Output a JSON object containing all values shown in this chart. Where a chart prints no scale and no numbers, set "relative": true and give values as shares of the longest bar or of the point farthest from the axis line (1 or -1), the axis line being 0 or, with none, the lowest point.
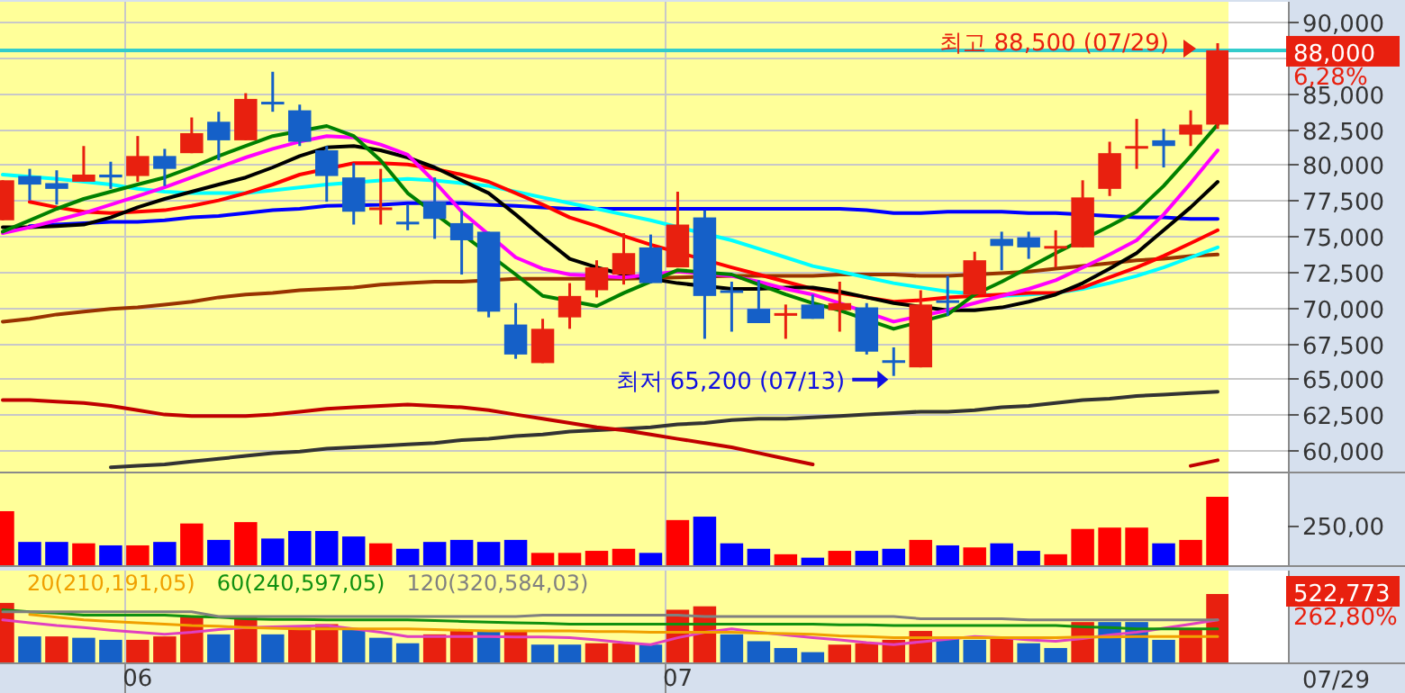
{
  "chart_data": [
    {
      "type": "candlestick",
      "categories": [
        null,
        null,
        null,
        null,
        null,
        "06",
        null,
        null,
        null,
        null,
        null,
        null,
        null,
        null,
        null,
        null,
        null,
        null,
        null,
        null,
        null,
        null,
        null,
        null,
        null,
        "07",
        null,
        null,
        null,
        null,
        null,
        null,
        null,
        null,
        null,
        null,
        null,
        null,
        null,
        null,
        null,
        null,
        null,
        null,
        null,
        null
      ],
      "ohlc": [
        [
          76100,
          78900,
          76100,
          78900
        ],
        [
          79200,
          79700,
          77500,
          78600
        ],
        [
          78700,
          79600,
          77200,
          78300
        ],
        [
          78800,
          81300,
          78800,
          79300
        ],
        [
          79300,
          80200,
          78300,
          79100
        ],
        [
          79200,
          82000,
          78800,
          80600
        ],
        [
          80600,
          81100,
          78500,
          79700
        ],
        [
          80800,
          83300,
          80800,
          82200
        ],
        [
          83000,
          83700,
          80300,
          81700
        ],
        [
          81700,
          85000,
          81700,
          84600
        ],
        [
          84400,
          86500,
          83700,
          84300
        ],
        [
          83800,
          84200,
          81300,
          81600
        ],
        [
          81000,
          81300,
          77400,
          79200
        ],
        [
          79100,
          80100,
          75800,
          76700
        ],
        [
          76900,
          79700,
          75800,
          77000
        ],
        [
          76000,
          77200,
          75400,
          75900
        ],
        [
          77400,
          79100,
          74800,
          76200
        ],
        [
          75900,
          76800,
          72300,
          74700
        ],
        [
          75300,
          75300,
          69300,
          69700
        ],
        [
          68800,
          70300,
          66400,
          66700
        ],
        [
          66100,
          69200,
          66100,
          68500
        ],
        [
          69300,
          71700,
          68500,
          70800
        ],
        [
          71200,
          73300,
          70700,
          72800
        ],
        [
          72300,
          75200,
          71600,
          73800
        ],
        [
          74200,
          75100,
          71700,
          71700
        ],
        [
          72800,
          78100,
          72800,
          75800
        ],
        [
          76300,
          76800,
          67800,
          70800
        ],
        [
          71200,
          71800,
          68300,
          71100
        ],
        [
          69900,
          71900,
          68900,
          68900
        ],
        [
          69500,
          70200,
          67800,
          69600
        ],
        [
          70200,
          70900,
          69200,
          69200
        ],
        [
          69800,
          71800,
          68300,
          70300
        ],
        [
          70000,
          70300,
          66700,
          66900
        ],
        [
          66300,
          67200,
          65200,
          66200
        ],
        [
          65800,
          71200,
          65800,
          70200
        ],
        [
          70500,
          72200,
          69400,
          70400
        ],
        [
          70900,
          73900,
          70900,
          73300
        ],
        [
          74800,
          75300,
          72600,
          74300
        ],
        [
          74900,
          75300,
          73400,
          74200
        ],
        [
          74200,
          75400,
          72800,
          74300
        ],
        [
          74200,
          78900,
          74200,
          77700
        ],
        [
          78300,
          81600,
          77800,
          80800
        ],
        [
          81200,
          83200,
          79700,
          81300
        ],
        [
          81700,
          82500,
          79800,
          81300
        ],
        [
          82100,
          83800,
          81300,
          82800
        ],
        [
          82800,
          88500,
          82500,
          88000
        ]
      ],
      "colors": [
        "#e8200f",
        "#1560c8",
        "#1560c8",
        "#e8200f",
        "#1560c8",
        "#e8200f",
        "#1560c8",
        "#e8200f",
        "#1560c8",
        "#e8200f",
        "#1560c8",
        "#1560c8",
        "#1560c8",
        "#1560c8",
        "#e8200f",
        "#1560c8",
        "#1560c8",
        "#1560c8",
        "#1560c8",
        "#1560c8",
        "#e8200f",
        "#e8200f",
        "#e8200f",
        "#e8200f",
        "#1560c8",
        "#e8200f",
        "#1560c8",
        "#1560c8",
        "#1560c8",
        "#e8200f",
        "#1560c8",
        "#e8200f",
        "#1560c8",
        "#1560c8",
        "#e8200f",
        "#1560c8",
        "#e8200f",
        "#1560c8",
        "#1560c8",
        "#e8200f",
        "#e8200f",
        "#e8200f",
        "#e8200f",
        "#1560c8",
        "#e8200f",
        "#e8200f"
      ],
      "series": [
        {
          "type": "line",
          "color": "#993300",
          "values": [
            69000,
            69200,
            69500,
            69700,
            69900,
            70000,
            70200,
            70400,
            70700,
            70900,
            71000,
            71200,
            71300,
            71400,
            71600,
            71700,
            71800,
            71800,
            null,
            72000,
            72000,
            72000,
            null,
            72000,
            null,
            72100,
            null,
            72200,
            72200,
            72200,
            72200,
            72300,
            72300,
            72300,
            72200,
            72200,
            null,
            72400,
            72500,
            72700,
            72900,
            73100,
            73300,
            73400,
            73600,
            73700
          ]
        },
        {
          "type": "line",
          "color": "#333333",
          "values": [
            null,
            null,
            null,
            null,
            58800,
            58900,
            59000,
            59200,
            59400,
            59600,
            59800,
            59900,
            60100,
            60200,
            60300,
            60400,
            60500,
            60700,
            60800,
            61000,
            61100,
            61300,
            61400,
            61500,
            61600,
            61800,
            61900,
            62100,
            62200,
            62200,
            62300,
            62400,
            62500,
            62600,
            62700,
            62700,
            62800,
            63000,
            63100,
            63300,
            63500,
            63600,
            63800,
            63900,
            64000,
            64100
          ]
        },
        {
          "type": "line",
          "color": "#c00000",
          "values": [
            63500,
            63500,
            63400,
            63300,
            63100,
            62800,
            62500,
            62400,
            62400,
            62400,
            62500,
            62700,
            62900,
            63000,
            63100,
            63200,
            63100,
            63000,
            62800,
            62500,
            62200,
            61900,
            61600,
            61400,
            61100,
            60800,
            60500,
            60200,
            59800,
            59400,
            59000,
            null,
            null,
            null,
            null,
            null,
            null,
            null,
            null,
            null,
            null,
            null,
            null,
            null,
            58900,
            59300
          ]
        },
        {
          "type": "line",
          "color": "#0000ff",
          "values": [
            null,
            75700,
            75800,
            75900,
            76000,
            76000,
            76100,
            76300,
            76400,
            76600,
            76800,
            76900,
            77100,
            null,
            77200,
            77300,
            null,
            77300,
            77200,
            77100,
            77000,
            76900,
            76900,
            76900,
            76900,
            76900,
            76900,
            76900,
            76900,
            76900,
            76900,
            76900,
            76800,
            76600,
            76600,
            76700,
            76700,
            76700,
            76600,
            76600,
            null,
            76400,
            76300,
            76300,
            76200,
            76200
          ]
        },
        {
          "type": "line",
          "color": "#00ffff",
          "values": [
            79300,
            null,
            79000,
            null,
            78600,
            78300,
            78100,
            78000,
            78000,
            78000,
            78200,
            78400,
            78600,
            null,
            78900,
            79000,
            78900,
            78700,
            78500,
            78100,
            77700,
            77300,
            76900,
            76500,
            76100,
            null,
            null,
            74700,
            74100,
            73500,
            72900,
            72500,
            72100,
            71700,
            71400,
            71100,
            null,
            70800,
            70900,
            71000,
            71300,
            71700,
            72200,
            72800,
            73500,
            74200
          ]
        },
        {
          "type": "line",
          "color": "#ff0000",
          "values": [
            null,
            77400,
            77000,
            76700,
            76600,
            76700,
            76800,
            77100,
            77500,
            78000,
            78600,
            79300,
            null,
            80100,
            80100,
            80000,
            79700,
            79300,
            78800,
            78000,
            77200,
            76300,
            75700,
            75000,
            74400,
            null,
            null,
            72800,
            72300,
            71800,
            71300,
            71000,
            70700,
            70400,
            70500,
            70700,
            null,
            70900,
            71000,
            71000,
            71400,
            72100,
            72800,
            73600,
            74500,
            75400
          ]
        },
        {
          "type": "line",
          "color": "#000000",
          "values": [
            75600,
            75600,
            75700,
            75800,
            76300,
            77000,
            77600,
            78100,
            78600,
            79100,
            79800,
            80600,
            81200,
            81300,
            81000,
            80500,
            79800,
            78900,
            78000,
            76500,
            74900,
            73400,
            72800,
            72300,
            null,
            71700,
            null,
            71300,
            71300,
            71400,
            71400,
            71100,
            70700,
            70300,
            null,
            69800,
            69800,
            70000,
            70400,
            70900,
            71700,
            72700,
            73800,
            75400,
            77000,
            78800
          ]
        },
        {
          "type": "line",
          "color": "#ff00ff",
          "values": [
            75200,
            75600,
            76100,
            76600,
            77200,
            77800,
            78400,
            79100,
            79800,
            80500,
            81100,
            81600,
            82000,
            81900,
            81400,
            80700,
            78800,
            76700,
            null,
            73500,
            72700,
            72300,
            null,
            72100,
            null,
            72500,
            null,
            72200,
            71800,
            71300,
            70900,
            70300,
            null,
            69000,
            null,
            69800,
            70300,
            70800,
            71300,
            71900,
            72800,
            73700,
            74700,
            76500,
            78700,
            81000
          ]
        },
        {
          "type": "line",
          "color": "#008000",
          "values": [
            75300,
            76100,
            76900,
            77600,
            78100,
            78600,
            79100,
            79800,
            80600,
            81300,
            82000,
            null,
            82700,
            82000,
            80300,
            78000,
            null,
            null,
            null,
            72300,
            70800,
            null,
            70100,
            71000,
            null,
            72600,
            null,
            72300,
            71600,
            70900,
            70300,
            69800,
            null,
            68500,
            null,
            69500,
            70900,
            71800,
            72800,
            73800,
            null,
            75700,
            76700,
            78500,
            80600,
            82800
          ]
        }
      ],
      "ylim": [
        58500,
        91400
      ],
      "yticks": [
        {
          "value": 60000,
          "label": "60,000"
        },
        {
          "value": 62500,
          "label": "62,500"
        },
        {
          "value": 65000,
          "label": "65,000"
        },
        {
          "value": 67500,
          "label": "67,500"
        },
        {
          "value": 70000,
          "label": "70,000"
        },
        {
          "value": 72500,
          "label": "72,500"
        },
        {
          "value": 75000,
          "label": "75,000"
        },
        {
          "value": 77500,
          "label": "77,500"
        },
        {
          "value": 80000,
          "label": "80,000"
        },
        {
          "value": 82500,
          "label": "82,500"
        },
        {
          "value": 85000,
          "label": "85,000"
        },
        {
          "value": 87500,
          "label": null
        },
        {
          "value": 90000,
          "label": "90,000"
        }
      ],
      "ref_lines": [
        {
          "axis": "y",
          "value": 88000,
          "color": "#33cccc"
        }
      ],
      "annotations": [
        {
          "text": "최고 88,500 (07/29)",
          "y": 88500
        },
        "최저 65,200 (07/13)",
        "88,000",
        "6,28%"
      ],
      "grid": true,
      "tick_labels": "y",
      "legend": false
    },
    {
      "type": "bar",
      "relative": true,
      "categories": [
        null,
        null,
        null,
        null,
        null,
        "06",
        null,
        null,
        null,
        null,
        null,
        null,
        null,
        null,
        null,
        null,
        null,
        null,
        null,
        null,
        null,
        null,
        null,
        null,
        null,
        "07",
        null,
        null,
        null,
        null,
        null,
        null,
        null,
        null,
        null,
        null,
        null,
        null,
        null,
        null,
        null,
        null,
        null,
        null,
        null,
        null
      ],
      "values": [
        0.79,
        0.34,
        0.34,
        0.32,
        0.29,
        0.29,
        0.34,
        0.61,
        0.37,
        0.63,
        0.39,
        0.5,
        0.5,
        0.42,
        0.32,
        0.24,
        0.34,
        0.37,
        0.34,
        0.37,
        0.18,
        0.18,
        0.21,
        0.24,
        0.18,
        0.66,
        0.71,
        0.32,
        0.24,
        0.16,
        0.11,
        0.21,
        0.21,
        0.24,
        0.37,
        0.29,
        0.26,
        0.32,
        0.21,
        0.16,
        0.53,
        0.55,
        0.55,
        0.32,
        0.37,
        1
      ],
      "colors": [
        "#ff0000",
        "#0000ff",
        "#0000ff",
        "#ff0000",
        "#0000ff",
        "#ff0000",
        "#0000ff",
        "#ff0000",
        "#0000ff",
        "#ff0000",
        "#0000ff",
        "#0000ff",
        "#0000ff",
        "#0000ff",
        "#ff0000",
        "#0000ff",
        "#0000ff",
        "#0000ff",
        "#0000ff",
        "#0000ff",
        "#ff0000",
        "#ff0000",
        "#ff0000",
        "#ff0000",
        "#0000ff",
        "#ff0000",
        "#0000ff",
        "#0000ff",
        "#0000ff",
        "#ff0000",
        "#0000ff",
        "#ff0000",
        "#0000ff",
        "#0000ff",
        "#ff0000",
        "#0000ff",
        "#ff0000",
        "#0000ff",
        "#0000ff",
        "#ff0000",
        "#ff0000",
        "#ff0000",
        "#ff0000",
        "#0000ff",
        "#ff0000",
        "#ff0000"
      ],
      "annotations": [
        "250,00"
      ],
      "grid": "x",
      "tick_labels": false,
      "legend": false
    },
    {
      "type": "bar",
      "relative": true,
      "categories": [
        null,
        null,
        null,
        null,
        null,
        "06",
        null,
        null,
        null,
        null,
        null,
        null,
        null,
        null,
        null,
        null,
        null,
        null,
        null,
        null,
        null,
        null,
        null,
        null,
        null,
        "07",
        null,
        null,
        null,
        null,
        null,
        null,
        null,
        null,
        null,
        null,
        null,
        null,
        null,
        null,
        null,
        null,
        null,
        null,
        null,
        null
      ],
      "values": [
        0.87,
        0.38,
        0.38,
        0.36,
        0.33,
        0.33,
        0.38,
        0.67,
        0.41,
        0.67,
        0.41,
        0.51,
        0.56,
        0.49,
        0.36,
        0.28,
        0.41,
        0.46,
        0.46,
        0.46,
        0.26,
        0.26,
        0.28,
        0.28,
        0.26,
        0.77,
        0.82,
        0.41,
        0.31,
        0.21,
        0.15,
        0.26,
        0.28,
        0.33,
        0.46,
        0.36,
        0.33,
        0.36,
        0.28,
        0.21,
        0.59,
        0.59,
        0.59,
        0.33,
        0.49,
        1
      ],
      "colors": [
        "#e8200f",
        "#1560c8",
        "#e8200f",
        "#1560c8",
        "#1560c8",
        "#e8200f",
        "#e8200f",
        "#e8200f",
        "#1560c8",
        "#e8200f",
        "#1560c8",
        "#e8200f",
        "#e8200f",
        "#1560c8",
        "#1560c8",
        "#1560c8",
        "#e8200f",
        "#e8200f",
        "#1560c8",
        "#e8200f",
        "#1560c8",
        "#1560c8",
        "#e8200f",
        "#e8200f",
        "#1560c8",
        "#e8200f",
        "#e8200f",
        "#1560c8",
        "#1560c8",
        "#1560c8",
        "#1560c8",
        "#e8200f",
        "#e8200f",
        "#e8200f",
        "#e8200f",
        "#1560c8",
        "#1560c8",
        "#e8200f",
        "#1560c8",
        "#1560c8",
        "#e8200f",
        "#1560c8",
        "#1560c8",
        "#1560c8",
        "#e8200f",
        "#e8200f"
      ],
      "series": [
        {
          "type": "line",
          "color": "#e040c0",
          "values": [
            0.62,
            0.58,
            0.54,
            0.51,
            0.47,
            0.44,
            0.41,
            0.44,
            0.48,
            0.51,
            0.52,
            0.53,
            0.54,
            0.49,
            0.44,
            0.38,
            0.38,
            0.38,
            0.38,
            0.37,
            0.37,
            0.36,
            0.33,
            0.29,
            0.26,
            0.36,
            0.44,
            0.49,
            0.44,
            0.4,
            0.36,
            0.33,
            0.29,
            0.26,
            0.3,
            0.34,
            0.38,
            0.36,
            0.33,
            0.31,
            0.35,
            0.4,
            0.44,
            0.5,
            0.56,
            0.62
          ]
        },
        {
          "type": "line",
          "name": "20(210,191,05)",
          "color": "#f0a000",
          "values": [
            null,
            0.7,
            0.66,
            0.62,
            0.6,
            0.58,
            0.56,
            0.54,
            0.53,
            0.51,
            0.5,
            0.49,
            0.49,
            0.49,
            0.49,
            0.49,
            0.48,
            0.47,
            0.46,
            0.46,
            0.46,
            0.46,
            0.45,
            0.45,
            0.44,
            0.44,
            0.44,
            0.44,
            0.43,
            0.42,
            0.41,
            0.39,
            0.38,
            0.36,
            0.36,
            0.36,
            0.36,
            0.36,
            0.36,
            0.36,
            0.37,
            0.37,
            0.38,
            0.38,
            0.38,
            0.38
          ]
        },
        {
          "type": "line",
          "name": "60(240,597,05)",
          "color": "#109010",
          "values": [
            0.77,
            0.74,
            0.72,
            0.69,
            0.69,
            0.69,
            0.69,
            0.67,
            0.66,
            0.64,
            0.63,
            0.63,
            0.62,
            0.62,
            0.62,
            0.62,
            0.61,
            0.6,
            0.59,
            0.58,
            0.57,
            0.56,
            0.56,
            0.56,
            0.56,
            0.56,
            0.56,
            0.56,
            0.56,
            0.56,
            0.56,
            0.55,
            0.55,
            0.54,
            0.54,
            0.54,
            0.54,
            0.54,
            0.54,
            0.54,
            0.52,
            0.51,
            0.49,
            0.49,
            0.49,
            0.49
          ]
        },
        {
          "type": "line",
          "name": "120(320,584,03)",
          "color": "#808080",
          "values": [
            0.74,
            0.74,
            0.74,
            0.74,
            0.74,
            0.74,
            0.74,
            0.74,
            0.67,
            0.67,
            0.67,
            0.67,
            0.67,
            0.67,
            0.67,
            0.67,
            0.67,
            0.67,
            0.67,
            0.67,
            0.69,
            0.69,
            0.69,
            0.69,
            0.69,
            0.69,
            0.67,
            0.67,
            0.67,
            0.67,
            0.67,
            0.67,
            0.67,
            0.67,
            0.64,
            0.64,
            0.64,
            0.64,
            0.62,
            0.62,
            0.62,
            0.62,
            0.62,
            0.62,
            0.62,
            0.62
          ]
        }
      ],
      "annotations": [
        "522,773",
        "262,80%",
        "07/29"
      ],
      "grid": "x",
      "tick_labels": "x",
      "legend": "top left"
    }
  ]
}
